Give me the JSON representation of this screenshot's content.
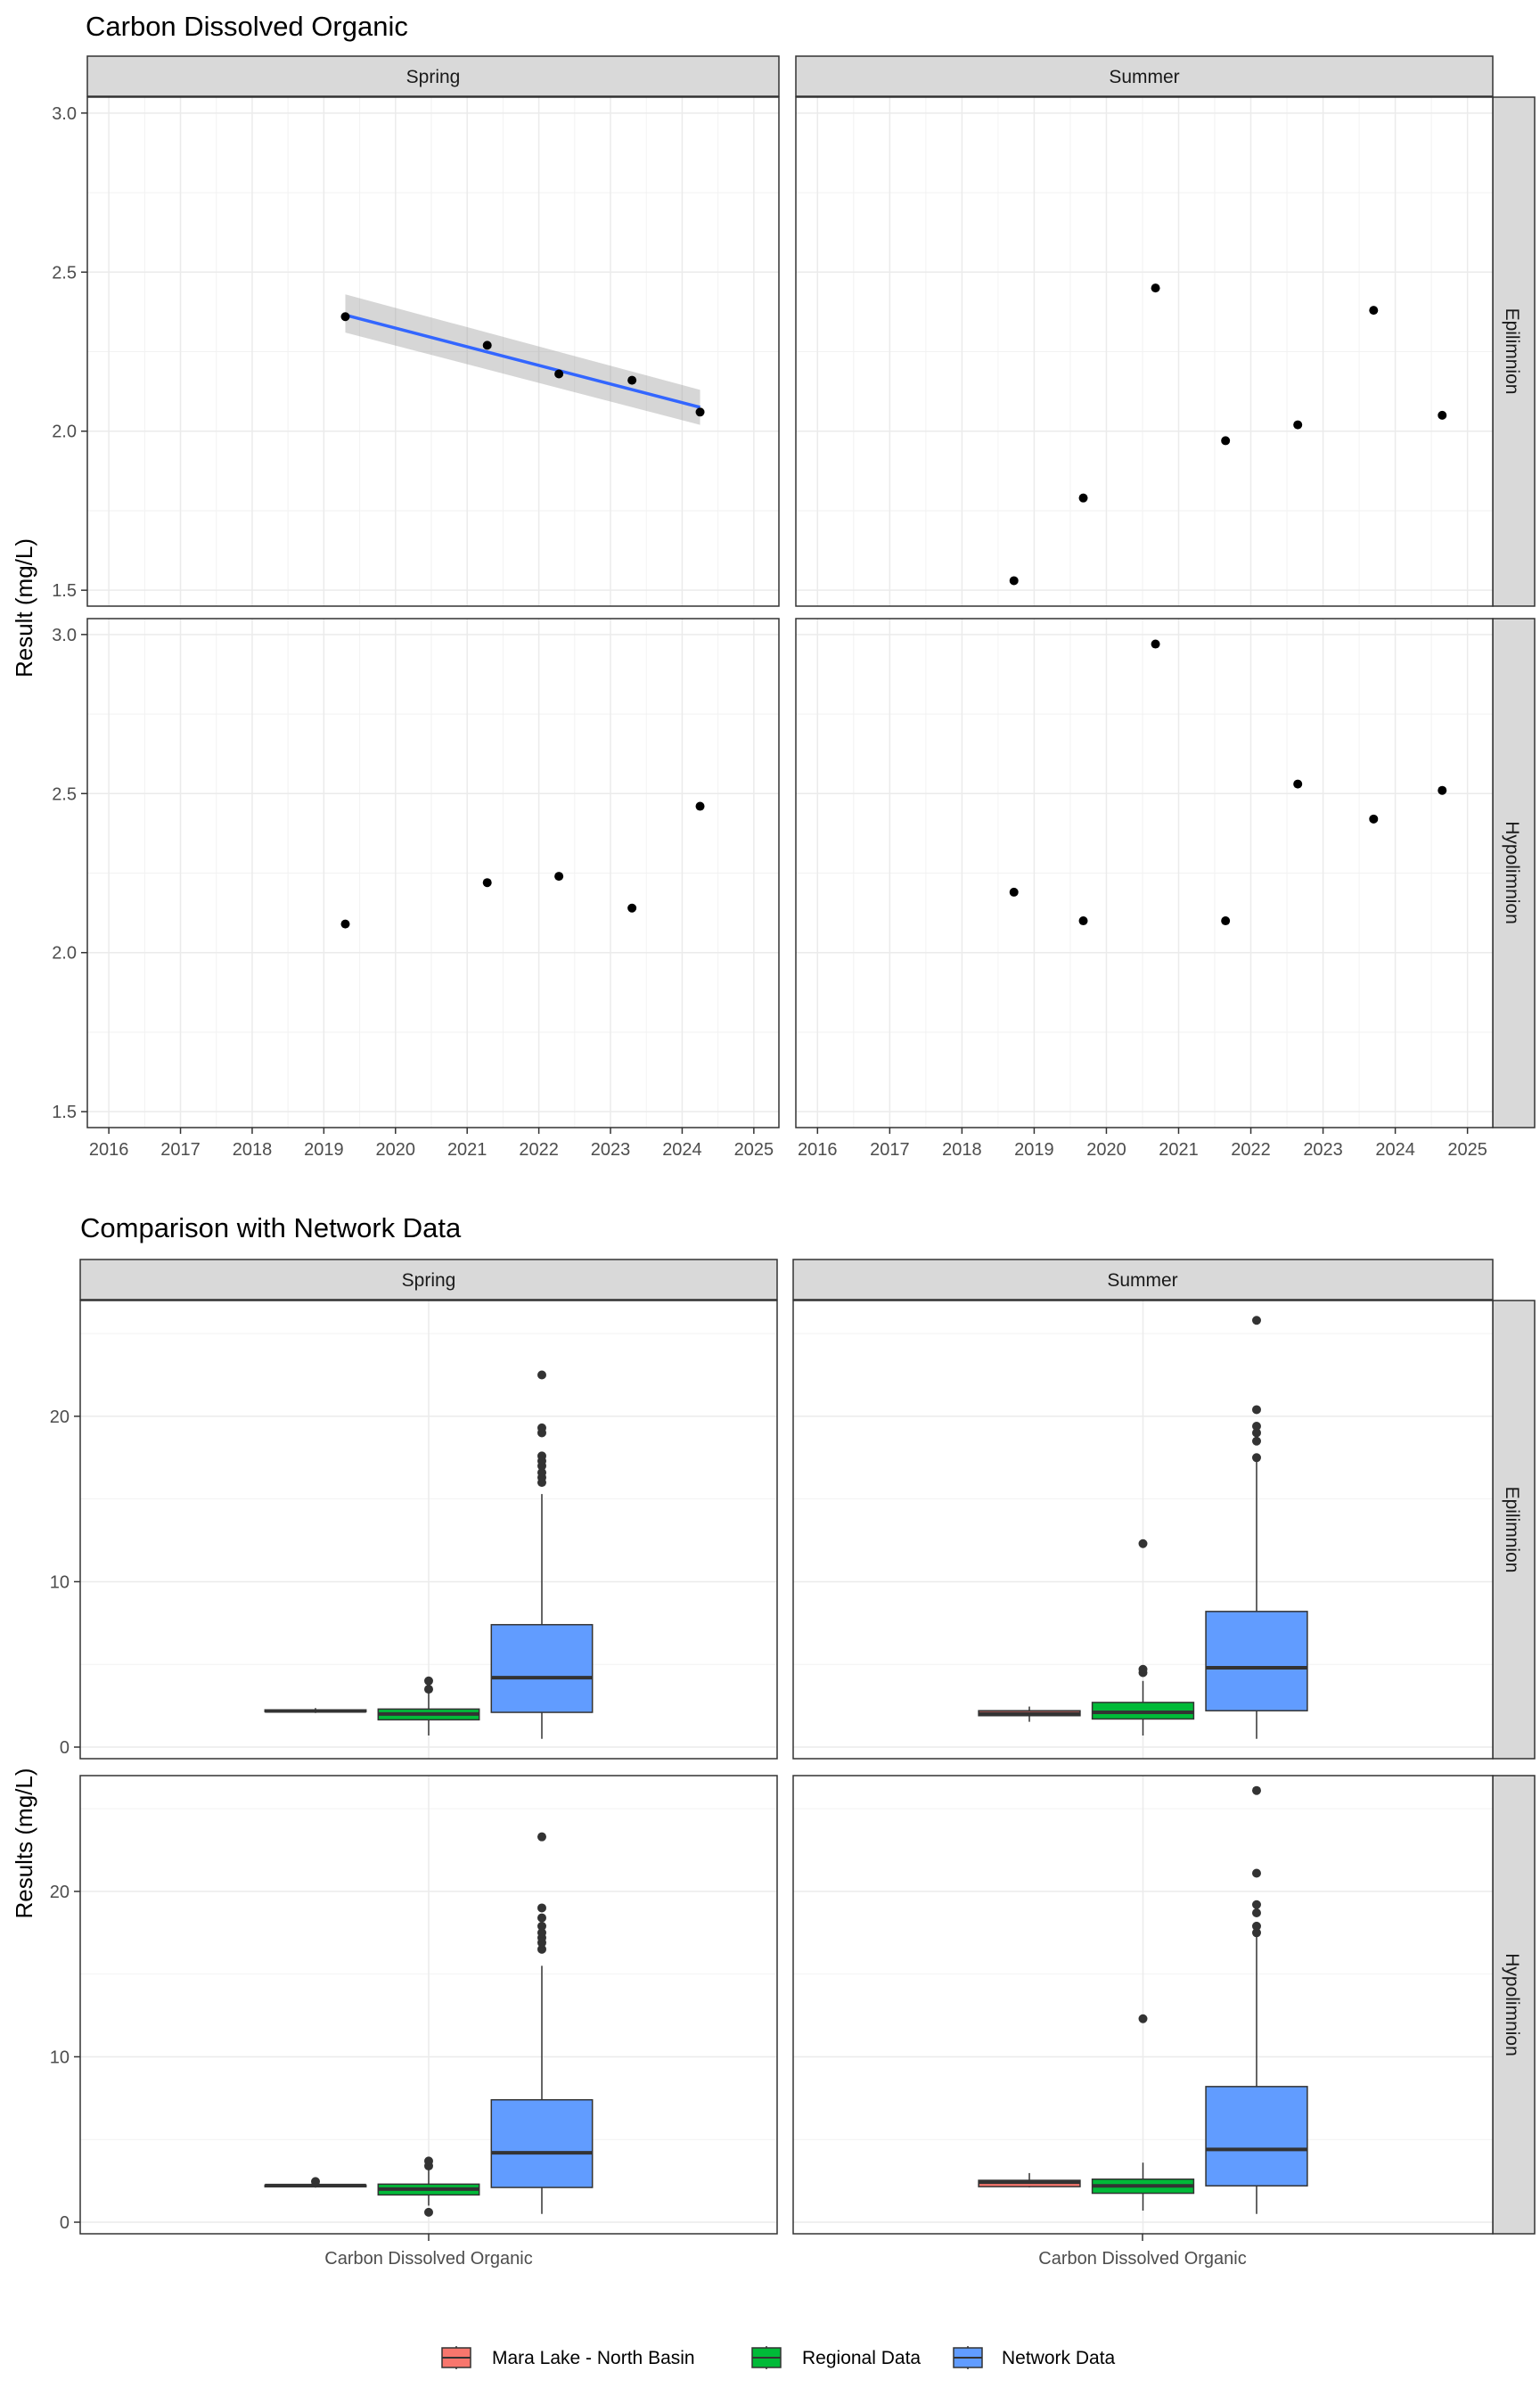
{
  "chart_data": [
    {
      "type": "scatter",
      "title": "Carbon Dissolved Organic",
      "ylabel": "Result (mg/L)",
      "xlabel": "",
      "columns": [
        "Spring",
        "Summer"
      ],
      "rows": [
        "Epilimnion",
        "Hypolimnion"
      ],
      "xlim": [
        2015.7,
        2025.35
      ],
      "ylim": [
        1.45,
        3.05
      ],
      "xticks": [
        "2016",
        "2017",
        "2018",
        "2019",
        "2020",
        "2021",
        "2022",
        "2023",
        "2024",
        "2025"
      ],
      "yticks": [
        "1.5",
        "2.0",
        "2.5",
        "3.0"
      ],
      "grid": true,
      "panels": [
        {
          "column": "Spring",
          "row": "Epilimnion",
          "points": [
            [
              2019.3,
              2.36
            ],
            [
              2021.28,
              2.27
            ],
            [
              2022.28,
              2.18
            ],
            [
              2023.3,
              2.16
            ],
            [
              2024.25,
              2.06
            ]
          ],
          "trend": {
            "x": [
              2019.3,
              2024.25
            ],
            "y": [
              2.365,
              2.075
            ],
            "ci_upper": [
              2.43,
              2.13
            ],
            "ci_lower": [
              2.31,
              2.02
            ]
          }
        },
        {
          "column": "Summer",
          "row": "Epilimnion",
          "points": [
            [
              2018.72,
              1.53
            ],
            [
              2019.68,
              1.79
            ],
            [
              2020.68,
              2.45
            ],
            [
              2021.65,
              1.97
            ],
            [
              2022.65,
              2.02
            ],
            [
              2023.7,
              2.38
            ],
            [
              2024.65,
              2.05
            ]
          ]
        },
        {
          "column": "Spring",
          "row": "Hypolimnion",
          "points": [
            [
              2019.3,
              2.09
            ],
            [
              2021.28,
              2.22
            ],
            [
              2022.28,
              2.24
            ],
            [
              2023.3,
              2.14
            ],
            [
              2024.25,
              2.46
            ]
          ]
        },
        {
          "column": "Summer",
          "row": "Hypolimnion",
          "points": [
            [
              2018.72,
              2.19
            ],
            [
              2019.68,
              2.1
            ],
            [
              2020.68,
              2.97
            ],
            [
              2021.65,
              2.1
            ],
            [
              2022.65,
              2.53
            ],
            [
              2023.7,
              2.42
            ],
            [
              2024.65,
              2.51
            ]
          ]
        }
      ]
    },
    {
      "type": "box",
      "title": "Comparison with Network Data",
      "ylabel": "Results (mg/L)",
      "xlabel": "",
      "category": "Carbon Dissolved Organic",
      "columns": [
        "Spring",
        "Summer"
      ],
      "rows": [
        "Epilimnion",
        "Hypolimnion"
      ],
      "ylim": [
        -0.7,
        27.0
      ],
      "yticks": [
        "0",
        "10",
        "20"
      ],
      "series": [
        {
          "name": "Mara Lake - North Basin",
          "color": "#F8766D"
        },
        {
          "name": "Regional Data",
          "color": "#00BA38"
        },
        {
          "name": "Network Data",
          "color": "#619CFF"
        }
      ],
      "legend": "bottom",
      "panels": [
        {
          "column": "Spring",
          "row": "Epilimnion",
          "boxes": [
            {
              "series": "Mara Lake - North Basin",
              "min": 2.06,
              "q1": 2.14,
              "median": 2.18,
              "q3": 2.25,
              "max": 2.36,
              "outliers": []
            },
            {
              "series": "Regional Data",
              "min": 0.7,
              "q1": 1.65,
              "median": 2.0,
              "q3": 2.3,
              "max": 3.3,
              "outliers": [
                3.5,
                4.0
              ]
            },
            {
              "series": "Network Data",
              "min": 0.5,
              "q1": 2.1,
              "median": 4.2,
              "q3": 7.4,
              "max": 15.3,
              "outliers": [
                16.0,
                16.3,
                16.6,
                17.0,
                17.3,
                17.6,
                19.0,
                19.3,
                22.5
              ]
            }
          ]
        },
        {
          "column": "Summer",
          "row": "Epilimnion",
          "boxes": [
            {
              "series": "Mara Lake - North Basin",
              "min": 1.53,
              "q1": 1.9,
              "median": 2.02,
              "q3": 2.2,
              "max": 2.45,
              "outliers": []
            },
            {
              "series": "Regional Data",
              "min": 0.7,
              "q1": 1.7,
              "median": 2.1,
              "q3": 2.7,
              "max": 4.0,
              "outliers": [
                4.5,
                4.7,
                12.3
              ]
            },
            {
              "series": "Network Data",
              "min": 0.5,
              "q1": 2.2,
              "median": 4.8,
              "q3": 8.2,
              "max": 17.3,
              "outliers": [
                17.5,
                18.5,
                19.0,
                19.4,
                20.4,
                25.8
              ]
            }
          ]
        },
        {
          "column": "Spring",
          "row": "Hypolimnion",
          "boxes": [
            {
              "series": "Mara Lake - North Basin",
              "min": 2.09,
              "q1": 2.14,
              "median": 2.22,
              "q3": 2.24,
              "max": 2.3,
              "outliers": [
                2.46
              ]
            },
            {
              "series": "Regional Data",
              "min": 1.0,
              "q1": 1.65,
              "median": 2.0,
              "q3": 2.3,
              "max": 3.2,
              "outliers": [
                3.4,
                3.7,
                0.6
              ]
            },
            {
              "series": "Network Data",
              "min": 0.5,
              "q1": 2.1,
              "median": 4.2,
              "q3": 7.4,
              "max": 15.5,
              "outliers": [
                16.5,
                16.9,
                17.2,
                17.5,
                17.9,
                18.4,
                19.0,
                23.3
              ]
            }
          ]
        },
        {
          "column": "Summer",
          "row": "Hypolimnion",
          "boxes": [
            {
              "series": "Mara Lake - North Basin",
              "min": 2.1,
              "q1": 2.15,
              "median": 2.42,
              "q3": 2.53,
              "max": 2.97,
              "outliers": []
            },
            {
              "series": "Regional Data",
              "min": 0.7,
              "q1": 1.75,
              "median": 2.2,
              "q3": 2.6,
              "max": 3.6,
              "outliers": [
                12.3
              ]
            },
            {
              "series": "Network Data",
              "min": 0.5,
              "q1": 2.2,
              "median": 4.4,
              "q3": 8.2,
              "max": 17.3,
              "outliers": [
                17.5,
                17.9,
                18.7,
                19.2,
                21.1,
                26.1
              ]
            }
          ]
        }
      ]
    }
  ]
}
